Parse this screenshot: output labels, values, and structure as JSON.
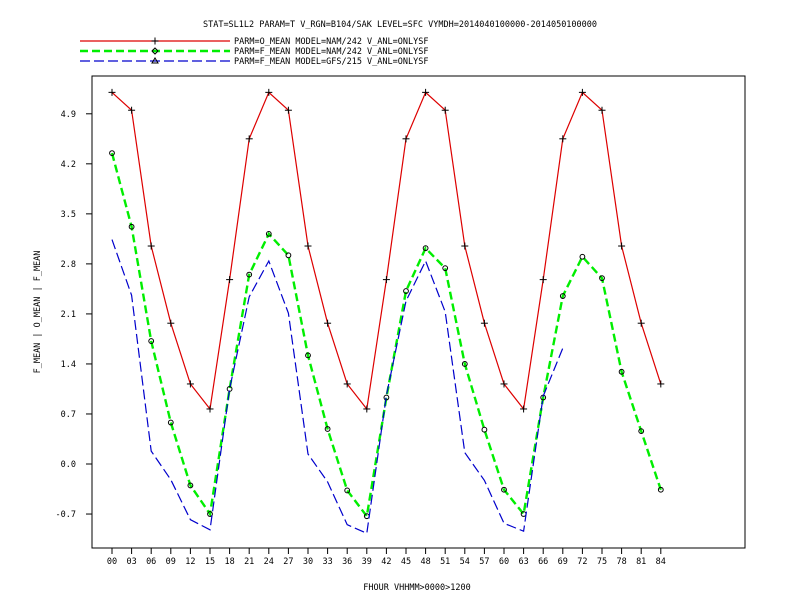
{
  "chart_data": {
    "type": "line",
    "title": "STAT=SL1L2 PARAM=T V_RGN=B104/SAK LEVEL=SFC VYMDH=2014040100000-2014050100000",
    "xlabel": "FHOUR VHHMM>0000>1200",
    "ylabel": "F_MEAN | O_MEAN | F_MEAN",
    "categories": [
      "00",
      "03",
      "06",
      "09",
      "12",
      "15",
      "18",
      "21",
      "24",
      "27",
      "30",
      "33",
      "36",
      "39",
      "42",
      "45",
      "48",
      "51",
      "54",
      "57",
      "60",
      "63",
      "66",
      "69",
      "72",
      "75",
      "78",
      "81",
      "84"
    ],
    "yticks": [
      "-0.7",
      "0.0",
      "0.7",
      "1.4",
      "2.1",
      "2.8",
      "3.5",
      "4.2",
      "4.9"
    ],
    "ylim": [
      -1.2,
      5.3
    ],
    "grid": false,
    "legend_position": "top-left",
    "series": [
      {
        "name": "PARM=O_MEAN MODEL=NAM/242 V_ANL=ONLYSF",
        "color": "#dd0000",
        "dash": "solid",
        "marker": "plus",
        "values": [
          5.2,
          4.95,
          3.05,
          1.97,
          1.12,
          0.77,
          2.58,
          4.55,
          5.2,
          4.95,
          3.05,
          1.97,
          1.12,
          0.77,
          2.58,
          4.55,
          5.2,
          4.95,
          3.05,
          1.97,
          1.12,
          0.77,
          2.58,
          4.55,
          5.2,
          4.95,
          3.05,
          1.97,
          1.12
        ]
      },
      {
        "name": "PARM=F_MEAN MODEL=NAM/242 V_ANL=ONLYSF",
        "color": "#00ee00",
        "dash": "dashed",
        "marker": "circle",
        "values": [
          4.35,
          3.32,
          1.72,
          0.58,
          -0.3,
          -0.7,
          1.05,
          2.65,
          3.22,
          2.92,
          1.52,
          0.49,
          -0.37,
          -0.73,
          0.93,
          2.42,
          3.02,
          2.74,
          1.4,
          0.48,
          -0.36,
          -0.7,
          0.93,
          2.35,
          2.9,
          2.6,
          1.29,
          0.46,
          -0.36
        ]
      },
      {
        "name": "PARM=F_MEAN MODEL=GFS/215 V_ANL=ONLYSF",
        "color": "#0000cc",
        "dash": "dashed",
        "marker": "none",
        "values": [
          3.14,
          2.36,
          0.18,
          -0.22,
          -0.78,
          -0.92,
          1.05,
          2.34,
          2.84,
          2.11,
          0.14,
          -0.25,
          -0.85,
          -0.97,
          0.96,
          2.28,
          2.84,
          2.13,
          0.16,
          -0.23,
          -0.83,
          -0.94,
          0.95,
          1.62,
          null,
          null,
          null,
          null,
          null
        ]
      }
    ]
  }
}
